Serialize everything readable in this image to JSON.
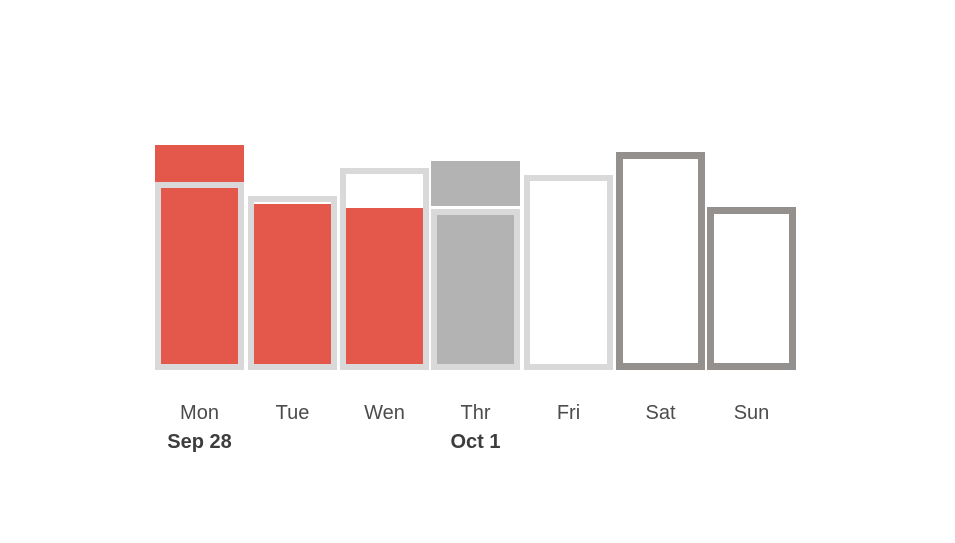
{
  "chart_data": {
    "type": "bar",
    "title": "",
    "categories": [
      "Mon",
      "Tue",
      "Wen",
      "Thr",
      "Fri",
      "Sat",
      "Sun"
    ],
    "category_sublabels": [
      "Sep 28",
      "",
      "",
      "Oct 1",
      "",
      "",
      ""
    ],
    "series": [
      {
        "name": "capacity_px",
        "values": [
          188,
          174,
          202,
          161,
          195,
          218,
          163
        ]
      },
      {
        "name": "filled_px",
        "values": [
          225,
          166,
          162,
          209,
          0,
          0,
          0
        ]
      }
    ],
    "legend": "none",
    "axes": "none",
    "baseline_y": 370,
    "days": [
      {
        "label": "Mon",
        "sublabel": "Sep 28",
        "container_h": 188,
        "fill_h": 176,
        "overflow_h": 37,
        "overflow_gap": 0,
        "border_w": 6,
        "fill_color": "#e4584c",
        "border_color": "#d9d9d9",
        "filled": true
      },
      {
        "label": "Tue",
        "sublabel": "",
        "container_h": 174,
        "fill_h": 160,
        "overflow_h": 0,
        "overflow_gap": 0,
        "border_w": 6,
        "fill_color": "#e4584c",
        "border_color": "#d9d9d9",
        "filled": true
      },
      {
        "label": "Wen",
        "sublabel": "",
        "container_h": 202,
        "fill_h": 156,
        "overflow_h": 0,
        "overflow_gap": 0,
        "border_w": 6,
        "fill_color": "#e4584c",
        "border_color": "#d9d9d9",
        "filled": true
      },
      {
        "label": "Thr",
        "sublabel": "Oct 1",
        "container_h": 161,
        "fill_h": 149,
        "overflow_h": 45,
        "overflow_gap": 3,
        "border_w": 6,
        "fill_color": "#b3b3b3",
        "border_color": "#d9d9d9",
        "filled": true
      },
      {
        "label": "Fri",
        "sublabel": "",
        "container_h": 195,
        "fill_h": 0,
        "overflow_h": 0,
        "overflow_gap": 0,
        "border_w": 6,
        "fill_color": "#ffffff",
        "border_color": "#d9d9d9",
        "filled": false
      },
      {
        "label": "Sat",
        "sublabel": "",
        "container_h": 218,
        "fill_h": 0,
        "overflow_h": 0,
        "overflow_gap": 0,
        "border_w": 7,
        "fill_color": "#ffffff",
        "border_color": "#94908e",
        "filled": false
      },
      {
        "label": "Sun",
        "sublabel": "",
        "container_h": 163,
        "fill_h": 0,
        "overflow_h": 0,
        "overflow_gap": 0,
        "border_w": 7,
        "fill_color": "#ffffff",
        "border_color": "#94908e",
        "filled": false
      }
    ],
    "colors": {
      "filled_red": "#e4584c",
      "filled_gray": "#b3b3b3",
      "outline_light": "#d9d9d9",
      "outline_dark": "#94908e",
      "day_text": "#4c4c4c",
      "date_text": "#3d3d3d",
      "background": "#ffffff"
    }
  }
}
